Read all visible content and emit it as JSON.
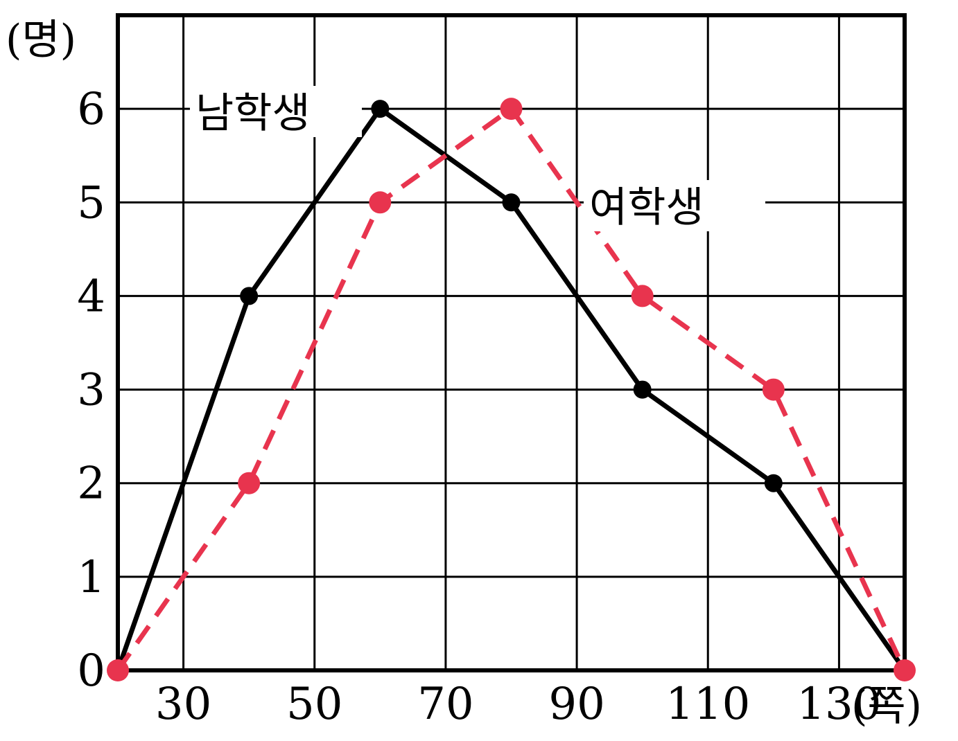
{
  "chart_data": {
    "type": "line",
    "title": "",
    "x_unit_label": "(쪽)",
    "y_unit_label": "(명)",
    "xlim": [
      20,
      140
    ],
    "ylim": [
      0,
      7
    ],
    "x_grid": [
      30,
      50,
      70,
      90,
      110,
      130
    ],
    "y_ticks": [
      0,
      1,
      2,
      3,
      4,
      5,
      6
    ],
    "x_tick_labels": [
      "30",
      "50",
      "70",
      "90",
      "110",
      "130"
    ],
    "y_tick_labels": [
      "0",
      "1",
      "2",
      "3",
      "4",
      "5",
      "6"
    ],
    "grid": true,
    "series": [
      {
        "name": "남학생",
        "style": "solid",
        "color": "#000000",
        "x": [
          20,
          40,
          60,
          80,
          100,
          120,
          140
        ],
        "values": [
          0,
          4,
          6,
          5,
          3,
          2,
          0
        ]
      },
      {
        "name": "여학생",
        "style": "dashed",
        "color": "#e8344e",
        "x": [
          20,
          40,
          60,
          80,
          100,
          120,
          140
        ],
        "values": [
          0,
          2,
          5,
          6,
          4,
          3,
          0
        ]
      }
    ]
  }
}
